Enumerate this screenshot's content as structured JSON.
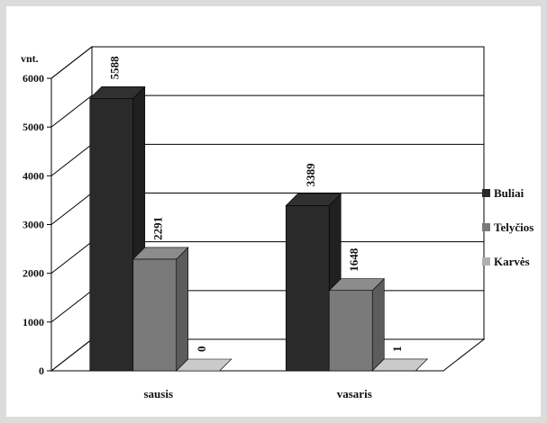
{
  "chart_data": {
    "type": "bar",
    "ylabel": "vnt.",
    "ylim": [
      0,
      6000
    ],
    "yticks": [
      0,
      1000,
      2000,
      3000,
      4000,
      5000,
      6000
    ],
    "categories": [
      "sausis",
      "vasaris"
    ],
    "series": [
      {
        "name": "Buliai",
        "values": [
          5588,
          3389
        ],
        "color": "#2a2a2a"
      },
      {
        "name": "Telyčios",
        "values": [
          2291,
          1648
        ],
        "color": "#7a7a7a"
      },
      {
        "name": "Karvės",
        "values": [
          0,
          1
        ],
        "color": "#b0b0b0"
      }
    ],
    "legend_position": "right",
    "grid": true,
    "style": "3d"
  }
}
